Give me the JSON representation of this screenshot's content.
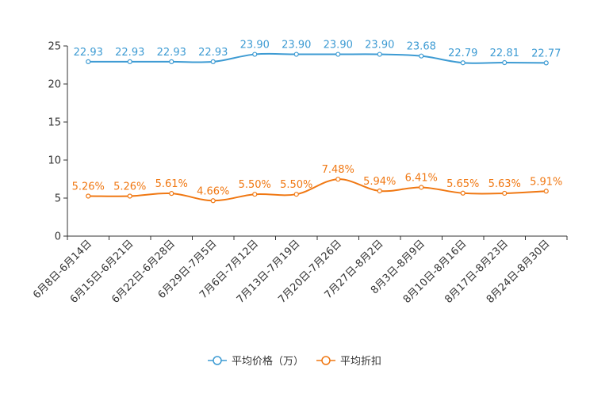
{
  "chart_data": {
    "type": "line",
    "title": "",
    "xlabel": "",
    "ylabel": "",
    "ylim": [
      0,
      25
    ],
    "yticks": [
      0,
      5,
      10,
      15,
      20,
      25
    ],
    "grid": false,
    "legend_position": "bottom-center",
    "categories": [
      "6月8日-6月14日",
      "6月15日-6月21日",
      "6月22日-6月28日",
      "6月29日-7月5日",
      "7月6日-7月12日",
      "7月13日-7月19日",
      "7月20日-7月26日",
      "7月27日-8月2日",
      "8月3日-8月9日",
      "8月10日-8月16日",
      "8月17日-8月23日",
      "8月24日-8月30日"
    ],
    "series": [
      {
        "name": "平均价格（万）",
        "color": "#3d9bd3",
        "values": [
          22.93,
          22.93,
          22.93,
          22.93,
          23.9,
          23.9,
          23.9,
          23.9,
          23.68,
          22.79,
          22.81,
          22.77
        ],
        "labels": [
          "22.93",
          "22.93",
          "22.93",
          "22.93",
          "23.90",
          "23.90",
          "23.90",
          "23.90",
          "23.68",
          "22.79",
          "22.81",
          "22.77"
        ]
      },
      {
        "name": "平均折扣",
        "color": "#f07813",
        "values": [
          5.26,
          5.26,
          5.61,
          4.66,
          5.5,
          5.5,
          7.48,
          5.94,
          6.41,
          5.65,
          5.63,
          5.91
        ],
        "labels": [
          "5.26%",
          "5.26%",
          "5.61%",
          "4.66%",
          "5.50%",
          "5.50%",
          "7.48%",
          "5.94%",
          "6.41%",
          "5.65%",
          "5.63%",
          "5.91%"
        ]
      }
    ]
  }
}
